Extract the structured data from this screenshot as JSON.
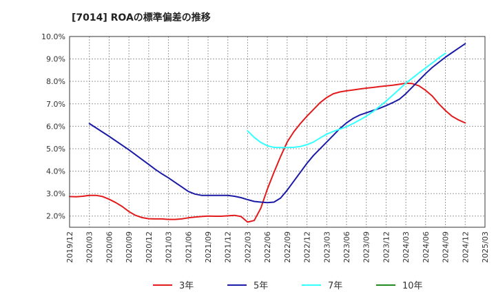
{
  "title": "[7014]  ROAの標準偏差の推移",
  "chart_data": {
    "type": "line",
    "title": "[7014]  ROAの標準偏差の推移",
    "xlabel": "",
    "ylabel": "",
    "ylim": [
      1.5,
      10.0
    ],
    "yticks": [
      "2.0%",
      "3.0%",
      "4.0%",
      "5.0%",
      "6.0%",
      "7.0%",
      "8.0%",
      "9.0%",
      "10.0%"
    ],
    "ytick_values": [
      2.0,
      3.0,
      4.0,
      5.0,
      6.0,
      7.0,
      8.0,
      9.0,
      10.0
    ],
    "x_categories": [
      "2019/12",
      "2020/03",
      "2020/06",
      "2020/09",
      "2020/12",
      "2021/03",
      "2021/06",
      "2021/09",
      "2021/12",
      "2022/03",
      "2022/06",
      "2022/09",
      "2022/12",
      "2023/03",
      "2023/06",
      "2023/09",
      "2023/12",
      "2024/03",
      "2024/06",
      "2024/09",
      "2024/12",
      "2025/03"
    ],
    "grid": true,
    "legend_position": "bottom",
    "series": [
      {
        "name": "3年",
        "color": "#e31a1c",
        "points": [
          [
            "2019/12",
            2.87
          ],
          [
            "2020/01",
            2.86
          ],
          [
            "2020/02",
            2.88
          ],
          [
            "2020/03",
            2.92
          ],
          [
            "2020/04",
            2.92
          ],
          [
            "2020/05",
            2.87
          ],
          [
            "2020/06",
            2.75
          ],
          [
            "2020/07",
            2.6
          ],
          [
            "2020/08",
            2.42
          ],
          [
            "2020/09",
            2.2
          ],
          [
            "2020/10",
            2.03
          ],
          [
            "2020/11",
            1.93
          ],
          [
            "2020/12",
            1.88
          ],
          [
            "2021/01",
            1.87
          ],
          [
            "2021/02",
            1.87
          ],
          [
            "2021/03",
            1.85
          ],
          [
            "2021/04",
            1.85
          ],
          [
            "2021/05",
            1.87
          ],
          [
            "2021/06",
            1.92
          ],
          [
            "2021/07",
            1.95
          ],
          [
            "2021/08",
            1.98
          ],
          [
            "2021/09",
            2.0
          ],
          [
            "2021/10",
            1.99
          ],
          [
            "2021/11",
            1.99
          ],
          [
            "2021/12",
            2.01
          ],
          [
            "2022/01",
            2.03
          ],
          [
            "2022/02",
            1.98
          ],
          [
            "2022/03",
            1.73
          ],
          [
            "2022/04",
            1.8
          ],
          [
            "2022/05",
            2.35
          ],
          [
            "2022/06",
            3.2
          ],
          [
            "2022/07",
            3.95
          ],
          [
            "2022/08",
            4.65
          ],
          [
            "2022/09",
            5.3
          ],
          [
            "2022/10",
            5.75
          ],
          [
            "2022/11",
            6.12
          ],
          [
            "2022/12",
            6.45
          ],
          [
            "2023/01",
            6.75
          ],
          [
            "2023/02",
            7.05
          ],
          [
            "2023/03",
            7.28
          ],
          [
            "2023/04",
            7.45
          ],
          [
            "2023/05",
            7.53
          ],
          [
            "2023/06",
            7.58
          ],
          [
            "2023/07",
            7.62
          ],
          [
            "2023/08",
            7.66
          ],
          [
            "2023/09",
            7.7
          ],
          [
            "2023/10",
            7.73
          ],
          [
            "2023/11",
            7.77
          ],
          [
            "2023/12",
            7.8
          ],
          [
            "2024/01",
            7.83
          ],
          [
            "2024/02",
            7.87
          ],
          [
            "2024/03",
            7.92
          ],
          [
            "2024/04",
            7.9
          ],
          [
            "2024/05",
            7.8
          ],
          [
            "2024/06",
            7.6
          ],
          [
            "2024/07",
            7.35
          ],
          [
            "2024/08",
            7.0
          ],
          [
            "2024/09",
            6.7
          ],
          [
            "2024/10",
            6.45
          ],
          [
            "2024/11",
            6.28
          ],
          [
            "2024/12",
            6.15
          ]
        ]
      },
      {
        "name": "5年",
        "color": "#1a1aa6",
        "points": [
          [
            "2020/03",
            6.12
          ],
          [
            "2020/06",
            5.55
          ],
          [
            "2020/09",
            4.95
          ],
          [
            "2020/12",
            4.3
          ],
          [
            "2021/01",
            4.08
          ],
          [
            "2021/02",
            3.88
          ],
          [
            "2021/03",
            3.7
          ],
          [
            "2021/04",
            3.5
          ],
          [
            "2021/05",
            3.3
          ],
          [
            "2021/06",
            3.1
          ],
          [
            "2021/07",
            2.98
          ],
          [
            "2021/08",
            2.92
          ],
          [
            "2021/09",
            2.92
          ],
          [
            "2021/10",
            2.92
          ],
          [
            "2021/11",
            2.92
          ],
          [
            "2021/12",
            2.92
          ],
          [
            "2022/01",
            2.88
          ],
          [
            "2022/02",
            2.82
          ],
          [
            "2022/03",
            2.73
          ],
          [
            "2022/04",
            2.65
          ],
          [
            "2022/05",
            2.62
          ],
          [
            "2022/06",
            2.6
          ],
          [
            "2022/07",
            2.62
          ],
          [
            "2022/08",
            2.8
          ],
          [
            "2022/09",
            3.15
          ],
          [
            "2022/10",
            3.55
          ],
          [
            "2022/11",
            3.95
          ],
          [
            "2022/12",
            4.35
          ],
          [
            "2023/01",
            4.7
          ],
          [
            "2023/02",
            5.0
          ],
          [
            "2023/03",
            5.3
          ],
          [
            "2023/04",
            5.6
          ],
          [
            "2023/05",
            5.9
          ],
          [
            "2023/06",
            6.15
          ],
          [
            "2023/07",
            6.35
          ],
          [
            "2023/08",
            6.5
          ],
          [
            "2023/09",
            6.6
          ],
          [
            "2023/10",
            6.7
          ],
          [
            "2023/11",
            6.8
          ],
          [
            "2023/12",
            6.92
          ],
          [
            "2024/01",
            7.05
          ],
          [
            "2024/02",
            7.2
          ],
          [
            "2024/03",
            7.45
          ],
          [
            "2024/04",
            7.75
          ],
          [
            "2024/05",
            8.05
          ],
          [
            "2024/06",
            8.35
          ],
          [
            "2024/07",
            8.62
          ],
          [
            "2024/08",
            8.85
          ],
          [
            "2024/09",
            9.08
          ],
          [
            "2024/10",
            9.28
          ],
          [
            "2024/11",
            9.48
          ],
          [
            "2024/12",
            9.68
          ]
        ]
      },
      {
        "name": "7年",
        "color": "#33ffff",
        "points": [
          [
            "2022/03",
            5.8
          ],
          [
            "2022/04",
            5.5
          ],
          [
            "2022/05",
            5.28
          ],
          [
            "2022/06",
            5.13
          ],
          [
            "2022/07",
            5.06
          ],
          [
            "2022/08",
            5.05
          ],
          [
            "2022/09",
            5.05
          ],
          [
            "2022/10",
            5.06
          ],
          [
            "2022/11",
            5.1
          ],
          [
            "2022/12",
            5.18
          ],
          [
            "2023/01",
            5.3
          ],
          [
            "2023/02",
            5.48
          ],
          [
            "2023/03",
            5.65
          ],
          [
            "2023/04",
            5.77
          ],
          [
            "2023/05",
            5.87
          ],
          [
            "2023/06",
            5.98
          ],
          [
            "2023/07",
            6.12
          ],
          [
            "2023/08",
            6.28
          ],
          [
            "2023/09",
            6.45
          ],
          [
            "2023/10",
            6.65
          ],
          [
            "2023/11",
            6.88
          ],
          [
            "2023/12",
            7.12
          ],
          [
            "2024/01",
            7.38
          ],
          [
            "2024/02",
            7.65
          ],
          [
            "2024/03",
            7.92
          ],
          [
            "2024/04",
            8.15
          ],
          [
            "2024/05",
            8.38
          ],
          [
            "2024/06",
            8.6
          ],
          [
            "2024/07",
            8.82
          ],
          [
            "2024/08",
            9.05
          ],
          [
            "2024/09",
            9.25
          ]
        ]
      },
      {
        "name": "10年",
        "color": "#1e8c1e",
        "points": []
      }
    ]
  }
}
